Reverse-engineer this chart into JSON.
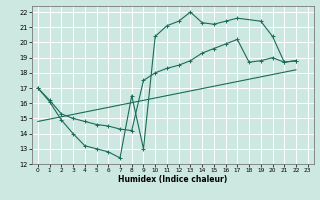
{
  "xlabel": "Humidex (Indice chaleur)",
  "bg_color": "#cce8e0",
  "grid_color": "#ffffff",
  "line_color": "#1a6b5a",
  "xlim": [
    -0.5,
    23.5
  ],
  "ylim": [
    12,
    22.4
  ],
  "xticks": [
    0,
    1,
    2,
    3,
    4,
    5,
    6,
    7,
    8,
    9,
    10,
    11,
    12,
    13,
    14,
    15,
    16,
    17,
    18,
    19,
    20,
    21,
    22,
    23
  ],
  "yticks": [
    12,
    13,
    14,
    15,
    16,
    17,
    18,
    19,
    20,
    21,
    22
  ],
  "series1_x": [
    0,
    1,
    2,
    3,
    4,
    5,
    6,
    7,
    8,
    9,
    10,
    11,
    12,
    13,
    14,
    15,
    16,
    17,
    19,
    20,
    21,
    22
  ],
  "series1_y": [
    17.0,
    16.1,
    14.9,
    14.0,
    13.2,
    13.0,
    12.8,
    12.4,
    16.5,
    13.0,
    20.4,
    21.1,
    21.4,
    22.0,
    21.3,
    21.2,
    21.4,
    21.6,
    21.4,
    20.4,
    18.7,
    18.8
  ],
  "series2_x": [
    0,
    1,
    2,
    3,
    4,
    5,
    6,
    7,
    8,
    9,
    10,
    11,
    12,
    13,
    14,
    15,
    16,
    17,
    18,
    19,
    20,
    21,
    22
  ],
  "series2_y": [
    17.0,
    16.2,
    15.3,
    15.0,
    14.8,
    14.6,
    14.5,
    14.3,
    14.2,
    17.5,
    18.0,
    18.3,
    18.5,
    18.8,
    19.3,
    19.6,
    19.9,
    20.2,
    18.7,
    18.8,
    19.0,
    18.7,
    18.8
  ],
  "series3_x": [
    0,
    22
  ],
  "series3_y": [
    14.8,
    18.2
  ]
}
